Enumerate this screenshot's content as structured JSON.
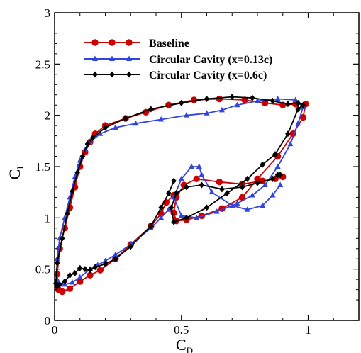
{
  "chart_data": {
    "type": "line",
    "title": "",
    "xlabel": "C",
    "xlabel_sub": "D",
    "ylabel": "C",
    "ylabel_sub": "L",
    "xlim": [
      0,
      1.2
    ],
    "ylim": [
      0,
      3
    ],
    "xticks": [
      0,
      0.5,
      1
    ],
    "yticks": [
      0,
      0.5,
      1,
      1.5,
      2,
      2.5,
      3
    ],
    "xtick_labels": [
      "0",
      "0.5",
      "1"
    ],
    "ytick_labels": [
      "0",
      "0.5",
      "1",
      "1.5",
      "2",
      "2.5",
      "3"
    ],
    "grid": false,
    "legend_position": "top-left",
    "series": [
      {
        "name": "Baseline",
        "color": "#cc0000",
        "marker": "circle",
        "x": [
          0.47,
          0.44,
          0.42,
          0.38,
          0.3,
          0.24,
          0.18,
          0.14,
          0.1,
          0.06,
          0.03,
          0.015,
          0.01,
          0.02,
          0.04,
          0.06,
          0.08,
          0.1,
          0.12,
          0.14,
          0.16,
          0.2,
          0.28,
          0.36,
          0.45,
          0.55,
          0.65,
          0.75,
          0.83,
          0.9,
          0.95,
          0.99,
          0.98,
          0.94,
          0.88,
          0.8,
          0.74,
          0.66,
          0.58,
          0.52,
          0.48,
          0.47,
          0.48,
          0.51,
          0.56,
          0.65,
          0.74,
          0.82,
          0.87,
          0.9
        ],
        "y": [
          1.22,
          1.15,
          1.04,
          0.92,
          0.74,
          0.6,
          0.49,
          0.44,
          0.38,
          0.31,
          0.28,
          0.3,
          0.45,
          0.7,
          0.9,
          1.1,
          1.3,
          1.5,
          1.64,
          1.74,
          1.82,
          1.9,
          1.97,
          2.03,
          2.1,
          2.15,
          2.16,
          2.15,
          2.12,
          2.1,
          2.11,
          2.11,
          1.98,
          1.82,
          1.6,
          1.38,
          1.2,
          1.09,
          1.02,
          0.98,
          0.97,
          1.05,
          1.2,
          1.32,
          1.38,
          1.35,
          1.33,
          1.36,
          1.38,
          1.4
        ]
      },
      {
        "name": "Circular Cavity (x=0.13c)",
        "color": "#3344dd",
        "marker": "triangle",
        "x": [
          0.45,
          0.42,
          0.38,
          0.3,
          0.24,
          0.2,
          0.17,
          0.14,
          0.1,
          0.07,
          0.04,
          0.02,
          0.01,
          0.01,
          0.02,
          0.04,
          0.06,
          0.08,
          0.1,
          0.12,
          0.14,
          0.18,
          0.24,
          0.32,
          0.42,
          0.52,
          0.6,
          0.66,
          0.72,
          0.8,
          0.88,
          0.95,
          0.98,
          0.96,
          0.93,
          0.88,
          0.83,
          0.78,
          0.72,
          0.64,
          0.56,
          0.5,
          0.47,
          0.5,
          0.54,
          0.57,
          0.58,
          0.62,
          0.7,
          0.76,
          0.82,
          0.86,
          0.89
        ],
        "y": [
          1.08,
          1.0,
          0.9,
          0.74,
          0.64,
          0.58,
          0.54,
          0.5,
          0.42,
          0.37,
          0.35,
          0.35,
          0.4,
          0.6,
          0.8,
          1.0,
          1.2,
          1.4,
          1.56,
          1.66,
          1.74,
          1.82,
          1.88,
          1.92,
          1.96,
          2.0,
          2.02,
          2.05,
          2.1,
          2.14,
          2.16,
          2.15,
          2.08,
          1.92,
          1.72,
          1.5,
          1.32,
          1.22,
          1.14,
          1.06,
          1.0,
          1.02,
          1.2,
          1.38,
          1.5,
          1.5,
          1.42,
          1.25,
          1.12,
          1.08,
          1.12,
          1.22,
          1.32
        ]
      },
      {
        "name": "Circular Cavity (x=0.6c)",
        "color": "#000000",
        "marker": "diamond",
        "x": [
          0.47,
          0.45,
          0.42,
          0.38,
          0.3,
          0.24,
          0.2,
          0.16,
          0.14,
          0.12,
          0.1,
          0.08,
          0.06,
          0.04,
          0.02,
          0.01,
          0.005,
          0.01,
          0.03,
          0.05,
          0.07,
          0.09,
          0.11,
          0.13,
          0.15,
          0.2,
          0.28,
          0.38,
          0.5,
          0.6,
          0.7,
          0.78,
          0.86,
          0.92,
          0.96,
          0.98,
          0.96,
          0.92,
          0.87,
          0.82,
          0.76,
          0.68,
          0.6,
          0.52,
          0.47,
          0.46,
          0.48,
          0.52,
          0.58,
          0.66,
          0.74,
          0.8,
          0.86,
          0.88,
          0.89
        ],
        "y": [
          1.36,
          1.24,
          1.1,
          0.92,
          0.72,
          0.6,
          0.55,
          0.52,
          0.49,
          0.5,
          0.51,
          0.46,
          0.44,
          0.38,
          0.35,
          0.33,
          0.36,
          0.56,
          0.8,
          1.04,
          1.26,
          1.44,
          1.6,
          1.72,
          1.78,
          1.88,
          1.97,
          2.06,
          2.12,
          2.16,
          2.18,
          2.17,
          2.14,
          2.11,
          2.12,
          2.1,
          2.06,
          1.82,
          1.62,
          1.52,
          1.38,
          1.24,
          1.1,
          1.0,
          0.96,
          1.1,
          1.24,
          1.3,
          1.32,
          1.28,
          1.3,
          1.34,
          1.38,
          1.42,
          1.42
        ]
      }
    ]
  }
}
